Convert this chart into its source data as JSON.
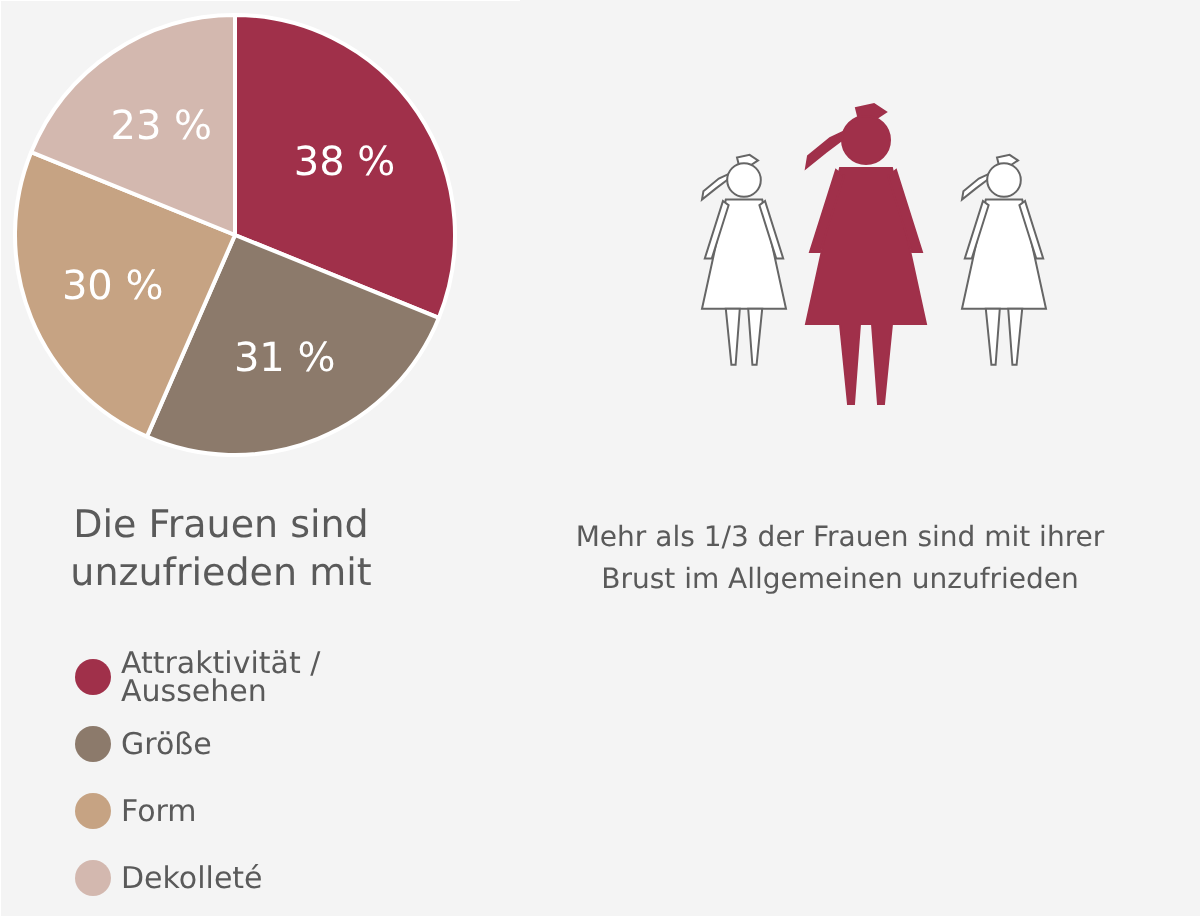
{
  "chart_data": {
    "type": "pie",
    "legend_title": "Die Frauen sind unzufrieden mit",
    "categories": [
      "Attraktivität / Aussehen",
      "Größe",
      "Form",
      "Dekolleté"
    ],
    "values": [
      38,
      31,
      30,
      23
    ],
    "colors": [
      "#a0304a",
      "#8c7a6b",
      "#c6a383",
      "#d3b8af"
    ],
    "value_labels": [
      "38 %",
      "31 %",
      "30 %",
      "23 %"
    ],
    "legend": "bottom",
    "annotations": [
      "Mehr als 1/3 der Frauen sind mit ihrer Brust im Allgemeinen unzufrieden"
    ]
  }
}
